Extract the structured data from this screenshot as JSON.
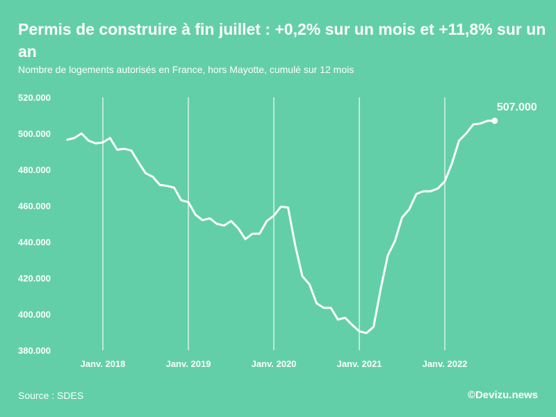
{
  "header": {
    "title": "Permis de construire à fin juillet : +0,2% sur un mois et +11,8% sur un an",
    "subtitle": "Nombre de logements autorisés en France, hors Mayotte, cumulé sur 12 mois"
  },
  "footer": {
    "source": "Source : SDES",
    "credit": "©Devizu.news"
  },
  "colors": {
    "background": "#63cfa9",
    "line": "#ffffff",
    "text": "#ffffff"
  },
  "chart_data": {
    "type": "line",
    "title": "Permis de construire à fin juillet : +0,2% sur un mois et +11,8% sur un an",
    "subtitle": "Nombre de logements autorisés en France, hors Mayotte, cumulé sur 12 mois",
    "xlabel": "",
    "ylabel": "",
    "ylim": [
      380000,
      520000
    ],
    "y_ticks": [
      380000,
      400000,
      420000,
      440000,
      460000,
      480000,
      500000,
      520000
    ],
    "y_tick_labels": [
      "380.000",
      "400.000",
      "420.000",
      "440.000",
      "460.000",
      "480.000",
      "500.000",
      "520.000"
    ],
    "x_ticks": [
      12,
      24,
      36,
      48,
      60
    ],
    "x_tick_labels": [
      "Janv. 2018",
      "Janv. 2019",
      "Janv. 2020",
      "Janv. 2021",
      "Janv. 2022"
    ],
    "xlim": [
      0,
      67
    ],
    "grid": "vertical at january",
    "series": [
      {
        "name": "Logements autorisés (cumul 12 mois)",
        "x": [
          7,
          8,
          9,
          10,
          11,
          12,
          13,
          14,
          15,
          16,
          17,
          18,
          19,
          20,
          21,
          22,
          23,
          24,
          25,
          26,
          27,
          28,
          29,
          30,
          31,
          32,
          33,
          34,
          35,
          36,
          37,
          38,
          39,
          40,
          41,
          42,
          43,
          44,
          45,
          46,
          47,
          48,
          49,
          50,
          51,
          52,
          53,
          54,
          55,
          56,
          57,
          58,
          59,
          60,
          61,
          62,
          63,
          64,
          65,
          66,
          67
        ],
        "values": [
          496500,
          497500,
          500000,
          496000,
          494500,
          495000,
          497500,
          491000,
          491500,
          490500,
          484000,
          478000,
          476000,
          471500,
          471000,
          470000,
          463000,
          462000,
          455000,
          452000,
          453000,
          450000,
          449000,
          451500,
          447500,
          441500,
          444500,
          444500,
          451500,
          454500,
          459500,
          459000,
          438000,
          421000,
          416500,
          406000,
          403500,
          403500,
          397000,
          398000,
          394000,
          390500,
          389500,
          393000,
          414000,
          432500,
          440500,
          453500,
          458000,
          466500,
          468000,
          468000,
          469500,
          473500,
          483500,
          496000,
          500000,
          505000,
          505500,
          507000,
          507000
        ]
      }
    ],
    "annotations": [
      {
        "x": 67,
        "y": 507000,
        "label": "507.000"
      }
    ]
  }
}
